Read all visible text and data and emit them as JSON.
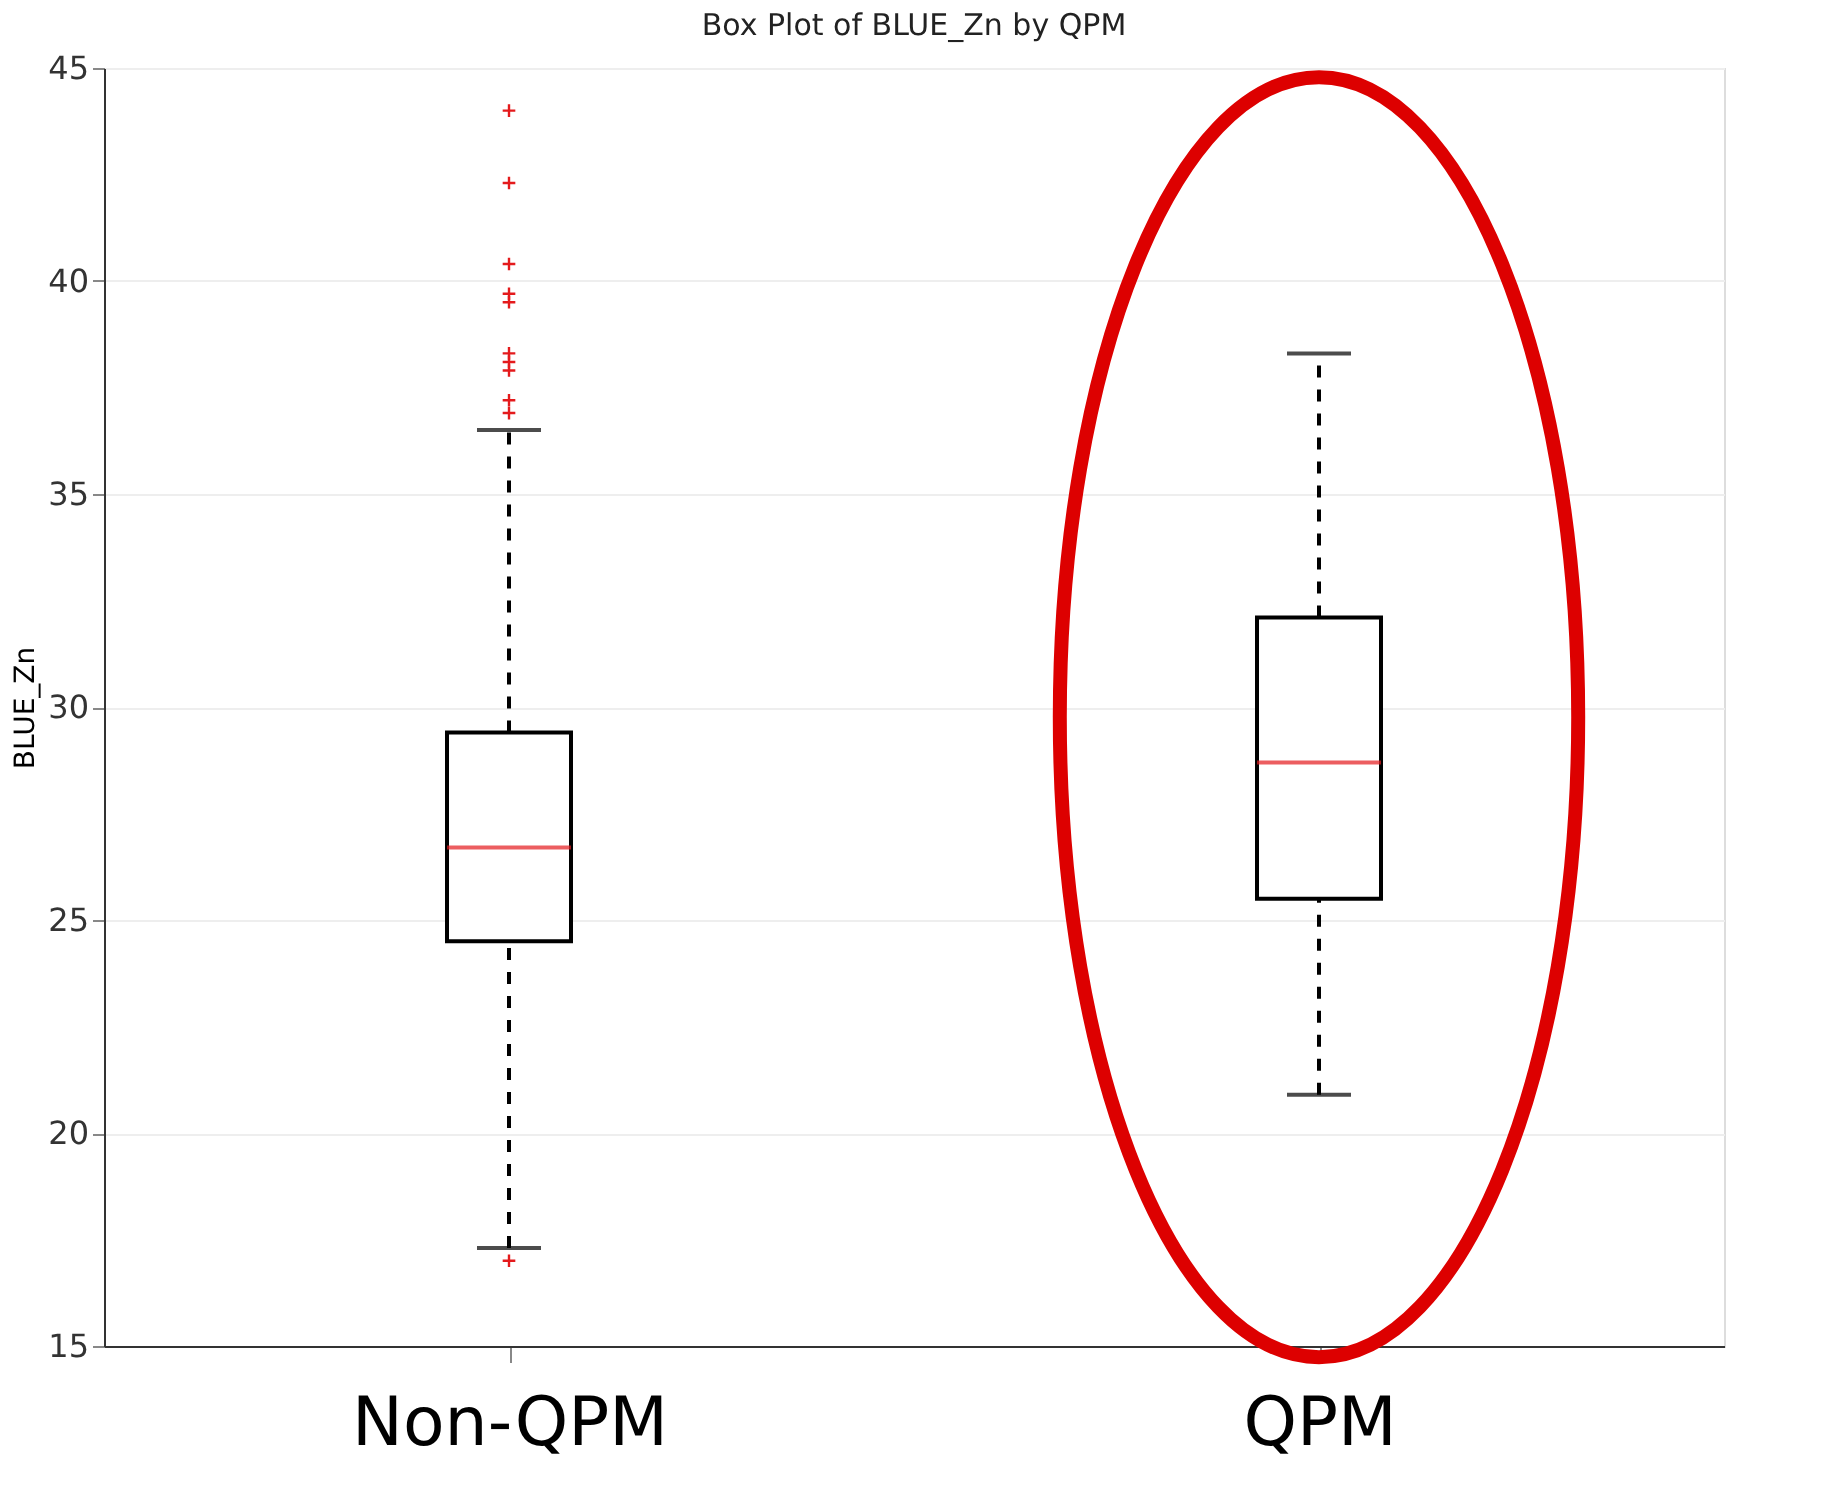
{
  "chart_data": {
    "type": "box",
    "title": "Box Plot of BLUE_Zn by QPM",
    "ylabel": "BLUE_Zn",
    "categories": [
      "Non-QPM",
      "QPM"
    ],
    "boxes": [
      {
        "low": 17.3,
        "q1": 24.5,
        "median": 26.7,
        "q3": 29.4,
        "high": 36.5,
        "outliers": [
          44.0,
          42.3,
          40.4,
          39.7,
          39.5,
          38.3,
          38.1,
          37.9,
          37.2,
          36.9,
          17.0
        ]
      },
      {
        "low": 20.9,
        "q1": 25.5,
        "median": 28.7,
        "q3": 32.1,
        "high": 38.3
      }
    ],
    "ylim": [
      15,
      45
    ],
    "yticks": [
      15,
      20,
      25,
      30,
      35,
      40,
      45
    ],
    "grid": "y",
    "marker": "cross",
    "line_style": "dashed"
  }
}
